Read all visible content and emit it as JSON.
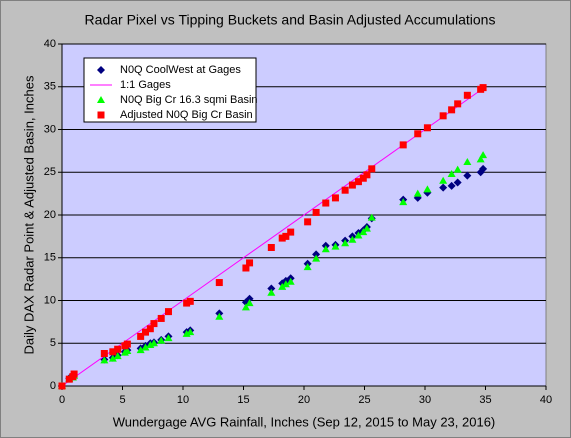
{
  "chart_data": {
    "type": "scatter",
    "title": "Radar Pixel vs Tipping Buckets and Basin Adjusted Accumulations",
    "x_label": "Wundergage AVG Rainfall, Inches (Sep 12, 2015 to May 23, 2016)",
    "y_label": "Daily DAX Radar Point & Adjusted Basin, Inches",
    "xlim": [
      0,
      40
    ],
    "ylim": [
      0,
      40
    ],
    "xticks": [
      0,
      5,
      10,
      15,
      20,
      25,
      30,
      35,
      40
    ],
    "yticks": [
      0,
      5,
      10,
      15,
      20,
      25,
      30,
      35,
      40
    ],
    "grid": true,
    "legend": "top-left",
    "series": [
      {
        "name": "N0Q CoolWest at Gages",
        "color": "#000080",
        "marker": "diamond",
        "x": [
          0,
          0.6,
          0.9,
          1.0,
          3.5,
          4.2,
          4.6,
          5.2,
          5.4,
          6.5,
          6.9,
          7.3,
          7.6,
          8.2,
          8.8,
          10.3,
          10.6,
          13.0,
          15.2,
          15.5,
          17.3,
          18.2,
          18.5,
          18.9,
          20.3,
          21.0,
          21.8,
          22.6,
          23.4,
          24.0,
          24.5,
          24.9,
          25.2,
          25.6,
          28.2,
          29.4,
          30.2,
          31.5,
          32.2,
          32.7,
          33.5,
          34.6,
          34.8
        ],
        "values": [
          0,
          0.9,
          1.1,
          1.3,
          3.1,
          3.3,
          3.6,
          4.0,
          4.2,
          4.4,
          4.7,
          5.0,
          5.1,
          5.4,
          5.8,
          6.3,
          6.5,
          8.5,
          9.8,
          10.2,
          11.4,
          12.0,
          12.3,
          12.6,
          14.3,
          15.4,
          16.4,
          16.5,
          17.0,
          17.5,
          17.9,
          18.2,
          18.6,
          19.6,
          21.8,
          22.0,
          22.6,
          23.2,
          23.4,
          23.8,
          24.6,
          25.0,
          25.4
        ]
      },
      {
        "name": "1:1 Gages",
        "color": "#ff00ff",
        "marker": "line",
        "x": [
          0,
          35
        ],
        "values": [
          0,
          35
        ]
      },
      {
        "name": "N0Q Big Cr 16.3 sqmi Basin",
        "color": "#00ff00",
        "marker": "triangle",
        "x": [
          0,
          0.6,
          0.9,
          1.0,
          3.5,
          4.2,
          4.6,
          5.2,
          5.4,
          6.5,
          6.9,
          7.3,
          7.6,
          8.2,
          8.8,
          10.3,
          10.6,
          13.0,
          15.2,
          15.5,
          17.3,
          18.2,
          18.5,
          18.9,
          20.3,
          21.0,
          21.8,
          22.6,
          23.4,
          24.0,
          24.5,
          24.9,
          25.2,
          25.6,
          28.2,
          29.4,
          30.2,
          31.5,
          32.2,
          32.7,
          33.5,
          34.6,
          34.8
        ],
        "values": [
          0,
          0.8,
          1.0,
          1.2,
          3.0,
          3.2,
          3.5,
          3.9,
          4.1,
          4.2,
          4.5,
          4.8,
          5.0,
          5.3,
          5.6,
          6.1,
          6.3,
          8.1,
          9.2,
          9.7,
          10.9,
          11.6,
          11.9,
          12.2,
          13.9,
          14.9,
          16.0,
          16.3,
          16.7,
          17.1,
          17.6,
          18.0,
          18.4,
          19.7,
          21.5,
          22.5,
          23.0,
          24.0,
          24.8,
          25.3,
          26.2,
          26.5,
          27.0
        ]
      },
      {
        "name": "Adjusted N0Q Big Cr Basin",
        "color": "#ff0000",
        "marker": "square",
        "x": [
          0,
          0.6,
          0.9,
          1.0,
          3.5,
          4.2,
          4.6,
          5.2,
          5.4,
          6.5,
          6.9,
          7.3,
          7.6,
          8.2,
          8.8,
          10.3,
          10.6,
          13.0,
          15.2,
          15.5,
          17.3,
          18.2,
          18.5,
          18.9,
          20.3,
          21.0,
          21.8,
          22.6,
          23.4,
          24.0,
          24.5,
          24.9,
          25.2,
          25.6,
          28.2,
          29.4,
          30.2,
          31.5,
          32.2,
          32.7,
          33.5,
          34.6,
          34.8
        ],
        "values": [
          0,
          0.8,
          1.1,
          1.4,
          3.8,
          4.0,
          4.3,
          4.7,
          4.9,
          5.8,
          6.3,
          6.7,
          7.3,
          7.9,
          8.7,
          9.7,
          9.9,
          12.1,
          13.8,
          14.4,
          16.2,
          17.3,
          17.5,
          18.0,
          19.2,
          20.3,
          21.4,
          22.0,
          22.9,
          23.5,
          23.9,
          24.3,
          24.7,
          25.4,
          28.2,
          29.5,
          30.2,
          31.6,
          32.3,
          33.0,
          34.0,
          34.7,
          34.9
        ]
      }
    ]
  }
}
